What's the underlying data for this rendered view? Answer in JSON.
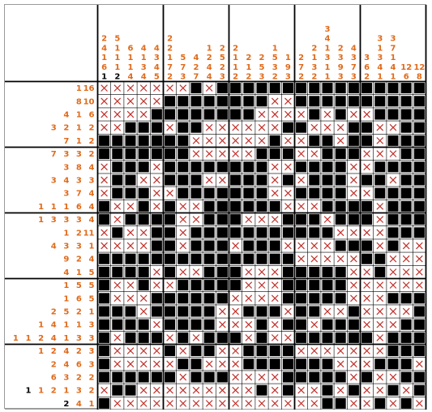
{
  "puzzle": {
    "colors": {
      "clue": "#e06a1a",
      "clue_done": "#000000",
      "filled": "#000000",
      "cross": "#c0302a",
      "grid": "#000000",
      "background": "#ffffff"
    },
    "column_clues": [
      [
        "2",
        "4",
        "1",
        "6",
        "1"
      ],
      [
        "5",
        "1",
        "1",
        "1",
        "2"
      ],
      [
        "6",
        "1",
        "1",
        "4"
      ],
      [
        "4",
        "1",
        "3",
        "4"
      ],
      [
        "4",
        "3",
        "4",
        "5"
      ],
      [
        "2",
        "2",
        "1",
        "7",
        "2"
      ],
      [
        "5",
        "7",
        "3"
      ],
      [
        "4",
        "2",
        "7"
      ],
      [
        "1",
        "2",
        "4",
        "4"
      ],
      [
        "2",
        "5",
        "2",
        "3"
      ],
      [
        "2",
        "1",
        "1",
        "2"
      ],
      [
        "2",
        "1",
        "2"
      ],
      [
        "2",
        "5",
        "3"
      ],
      [
        "1",
        "5",
        "3",
        "2"
      ],
      [
        "1",
        "9",
        "3"
      ],
      [
        "2",
        "7",
        "2"
      ],
      [
        "2",
        "1",
        "3",
        "2"
      ],
      [
        "3",
        "4",
        "1",
        "3",
        "1",
        "1"
      ],
      [
        "2",
        "3",
        "9",
        "3"
      ],
      [
        "4",
        "3",
        "7",
        "3"
      ],
      [
        "3",
        "6",
        "2"
      ],
      [
        "3",
        "1",
        "3",
        "4",
        "1"
      ],
      [
        "3",
        "7",
        "1",
        "4",
        "1"
      ],
      [
        "12",
        "6"
      ],
      [
        "12",
        "8"
      ]
    ],
    "column_clue_done": [
      [
        false,
        false,
        false,
        false,
        true
      ],
      [
        false,
        false,
        false,
        false,
        true
      ],
      [
        false,
        false,
        false,
        false
      ],
      [
        false,
        false,
        false,
        false
      ],
      [
        false,
        false,
        false,
        false
      ],
      [
        false,
        false,
        false,
        false,
        false
      ],
      [
        false,
        false,
        false
      ],
      [
        false,
        false,
        false
      ],
      [
        false,
        false,
        false,
        false
      ],
      [
        false,
        false,
        false,
        false
      ],
      [
        false,
        false,
        false,
        false
      ],
      [
        false,
        false,
        false
      ],
      [
        false,
        false,
        false
      ],
      [
        false,
        false,
        false,
        false
      ],
      [
        false,
        false,
        false
      ],
      [
        false,
        false,
        false
      ],
      [
        false,
        false,
        false,
        false
      ],
      [
        false,
        false,
        false,
        false,
        false,
        false
      ],
      [
        false,
        false,
        false,
        false
      ],
      [
        false,
        false,
        false,
        false
      ],
      [
        false,
        false,
        false
      ],
      [
        false,
        false,
        false,
        false,
        false
      ],
      [
        false,
        false,
        false,
        false,
        false
      ],
      [
        false,
        false
      ],
      [
        false,
        false
      ]
    ],
    "row_clues": [
      [
        "1",
        "16"
      ],
      [
        "8",
        "10"
      ],
      [
        "4",
        "1",
        "6"
      ],
      [
        "3",
        "2",
        "1",
        "2"
      ],
      [
        "7",
        "1",
        "2"
      ],
      [
        "7",
        "3",
        "3",
        "2"
      ],
      [
        "3",
        "8",
        "4"
      ],
      [
        "3",
        "4",
        "3",
        "3"
      ],
      [
        "3",
        "7",
        "4"
      ],
      [
        "1",
        "1",
        "1",
        "6",
        "4"
      ],
      [
        "1",
        "3",
        "3",
        "3",
        "4"
      ],
      [
        "1",
        "2",
        "11"
      ],
      [
        "4",
        "3",
        "3",
        "1"
      ],
      [
        "9",
        "2",
        "4"
      ],
      [
        "4",
        "1",
        "5"
      ],
      [
        "1",
        "5",
        "5"
      ],
      [
        "1",
        "6",
        "5"
      ],
      [
        "2",
        "5",
        "2",
        "1"
      ],
      [
        "1",
        "4",
        "1",
        "1",
        "3"
      ],
      [
        "1",
        "1",
        "2",
        "4",
        "1",
        "3",
        "3"
      ],
      [
        "1",
        "2",
        "4",
        "2",
        "3"
      ],
      [
        "2",
        "4",
        "6",
        "3"
      ],
      [
        "6",
        "3",
        "2",
        "2"
      ],
      [
        "1",
        "1",
        "2",
        "1",
        "3",
        "2"
      ],
      [
        "2",
        "4",
        "1"
      ]
    ],
    "row_clue_done": [
      [
        false,
        false
      ],
      [
        false,
        false
      ],
      [
        false,
        false,
        false
      ],
      [
        false,
        false,
        false,
        false
      ],
      [
        false,
        false,
        false
      ],
      [
        false,
        false,
        false,
        false
      ],
      [
        false,
        false,
        false
      ],
      [
        false,
        false,
        false,
        false
      ],
      [
        false,
        false,
        false
      ],
      [
        false,
        false,
        false,
        false,
        false
      ],
      [
        false,
        false,
        false,
        false,
        false
      ],
      [
        false,
        false,
        false
      ],
      [
        false,
        false,
        false,
        false
      ],
      [
        false,
        false,
        false
      ],
      [
        false,
        false,
        false
      ],
      [
        false,
        false,
        false
      ],
      [
        false,
        false,
        false
      ],
      [
        false,
        false,
        false,
        false
      ],
      [
        false,
        false,
        false,
        false,
        false
      ],
      [
        false,
        false,
        false,
        false,
        false,
        false,
        false
      ],
      [
        false,
        false,
        false,
        false,
        false
      ],
      [
        false,
        false,
        false,
        false
      ],
      [
        false,
        false,
        false,
        false
      ],
      [
        true,
        false,
        false,
        false,
        false,
        false
      ],
      [
        true,
        false,
        false
      ]
    ],
    "cell_legend": {
      "#": "filled",
      "x": "crossed",
      ".": "empty"
    },
    "grid": [
      "xxxxxxx#x################",
      "xxxxx########xx##########",
      "xxxx########xxxx#x#xx####",
      "xx###x##xxxxxx##xxx##xx##",
      "#######xxxxxx#xx##x##x###",
      "#######xxxxx###xx###xxx##",
      "x###x########xx####xx####",
      "x##xx###xx###x#x###x##x##",
      "x###xx#######xx####xx####",
      "#xx#x#xx######xxx####x###",
      "#x####xx###xxx###x###x###",
      "x#xx##x###########xxxx###",
      "xxxx##x###x###xxxx###x#xx",
      "###############xxxxx##xxx",
      "####x#xx###xxx#####xx#xxx",
      "#xx#xx#####xxx#####xxxxxx",
      "#xxx######xxxx#####xxx###",
      "###x#####xx###x##xx#xxxx#",
      "####x####xxx#x##x###xxx##",
      "#x###x#x###x#xx######x###",
      "#xxxx#x##xx####xxxxxxx###",
      "#xxxxx##xxx#######xxx###x",
      "######x###xxxx#####x#xx##",
      "x##xxxxxxxxx#x#xx#x#xx#x#",
      "#xxxxxxxxxxxxxxxx##xx#x#x"
    ]
  }
}
